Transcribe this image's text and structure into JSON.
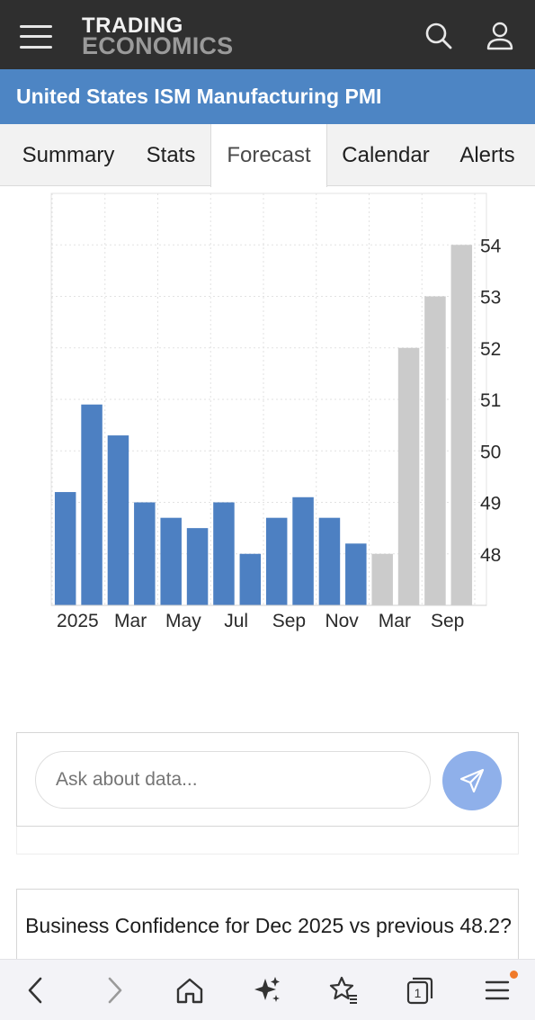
{
  "header": {
    "brand_line1": "TRADING",
    "brand_line2": "ECONOMICS",
    "menu_icon": "hamburger-menu-icon",
    "search_icon": "search-icon",
    "user_icon": "user-icon"
  },
  "title": "United States ISM Manufacturing PMI",
  "tabs": [
    {
      "label": "Summary",
      "active": false
    },
    {
      "label": "Stats",
      "active": false
    },
    {
      "label": "Forecast",
      "active": true
    },
    {
      "label": "Calendar",
      "active": false
    },
    {
      "label": "Alerts",
      "active": false
    }
  ],
  "chart_data": {
    "type": "bar",
    "title": "",
    "xlabel": "",
    "ylabel": "",
    "ylim": [
      47,
      55
    ],
    "y_ticks": [
      48,
      49,
      50,
      51,
      52,
      53,
      54
    ],
    "x_tick_labels": [
      "2025",
      "Mar",
      "May",
      "Jul",
      "Sep",
      "Nov",
      "Mar",
      "Sep"
    ],
    "grid": true,
    "y_axis_side": "right",
    "colors": {
      "actual": "#4d80c2",
      "forecast": "#cbcbcb"
    },
    "series": [
      {
        "kind": "actual",
        "values": [
          49.2,
          50.9,
          50.3,
          49.0,
          48.7,
          48.5,
          49.0,
          48.0,
          48.7,
          49.1,
          48.7,
          48.2
        ]
      },
      {
        "kind": "forecast",
        "values": [
          48.0,
          52.0,
          53.0,
          54.0
        ]
      }
    ]
  },
  "ask": {
    "placeholder": "Ask about data...",
    "send_icon": "send-icon"
  },
  "card": {
    "text": "Business Confidence for Dec 2025 vs previous 48.2?"
  },
  "browser_nav": {
    "icons": [
      "back-icon",
      "forward-icon",
      "home-icon",
      "sparkle-ai-icon",
      "favorites-icon",
      "tabs-icon",
      "menu-icon"
    ],
    "tabs_count": "1",
    "notification_color": "#f07a2a"
  }
}
